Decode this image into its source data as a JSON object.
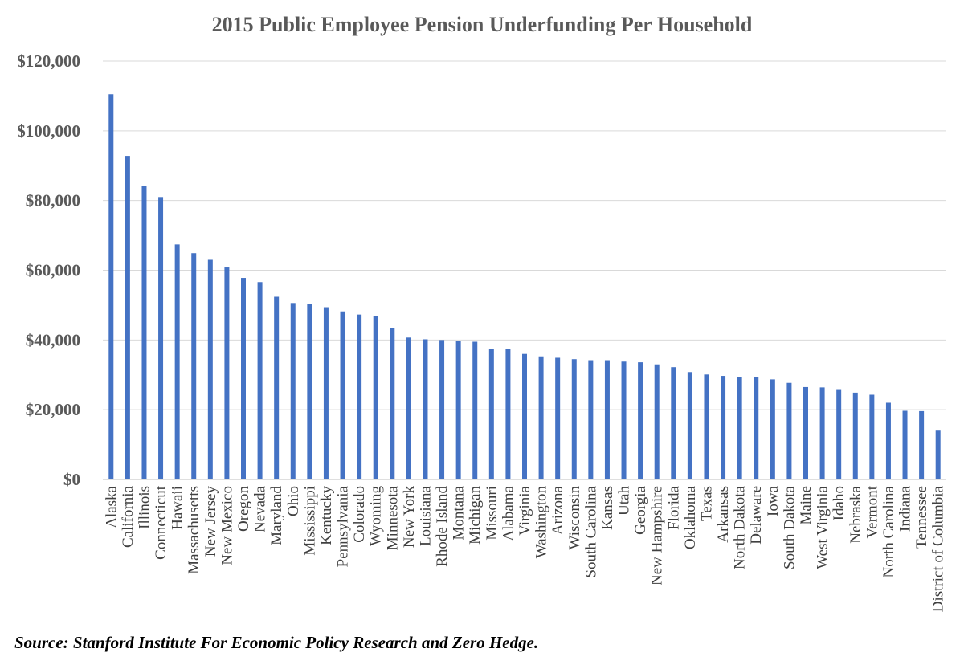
{
  "chart_data": {
    "type": "bar",
    "title": "2015 Public Employee Pension Underfunding Per Household",
    "xlabel": "",
    "ylabel": "",
    "ylim": [
      0,
      120000
    ],
    "yticks": [
      "$0",
      "$20,000",
      "$40,000",
      "$60,000",
      "$80,000",
      "$100,000",
      "$120,000"
    ],
    "grid": true,
    "bar_color": "#4472C4",
    "categories": [
      "Alaska",
      "California",
      "Illinois",
      "Connecticut",
      "Hawaii",
      "Massachusetts",
      "New Jersey",
      "New Mexico",
      "Oregon",
      "Nevada",
      "Maryland",
      "Ohio",
      "Mississippi",
      "Kentucky",
      "Pennsylvania",
      "Colorado",
      "Wyoming",
      "Minnesota",
      "New York",
      "Louisiana",
      "Rhode Island",
      "Montana",
      "Michigan",
      "Missouri",
      "Alabama",
      "Virginia",
      "Washington",
      "Arizona",
      "Wisconsin",
      "South Carolina",
      "Kansas",
      "Utah",
      "Georgia",
      "New Hampshire",
      "Florida",
      "Oklahoma",
      "Texas",
      "Arkansas",
      "North Dakota",
      "Delaware",
      "Iowa",
      "South Dakota",
      "Maine",
      "West Virginia",
      "Idaho",
      "Nebraska",
      "Vermont",
      "North Carolina",
      "Indiana",
      "Tennessee",
      "District of Columbia"
    ],
    "values": [
      110500,
      92800,
      84300,
      81000,
      67400,
      64900,
      63000,
      60800,
      57800,
      56600,
      52400,
      50600,
      50300,
      49400,
      48200,
      47300,
      46900,
      43400,
      40700,
      40200,
      40000,
      39800,
      39500,
      37500,
      37500,
      36000,
      35300,
      34900,
      34500,
      34200,
      34200,
      33800,
      33600,
      33000,
      32200,
      30800,
      30100,
      29700,
      29400,
      29300,
      28700,
      27700,
      26500,
      26400,
      25900,
      24900,
      24300,
      22000,
      19700,
      19600,
      14000
    ]
  },
  "source": "Source:  Stanford Institute For Economic Policy Research and Zero Hedge."
}
